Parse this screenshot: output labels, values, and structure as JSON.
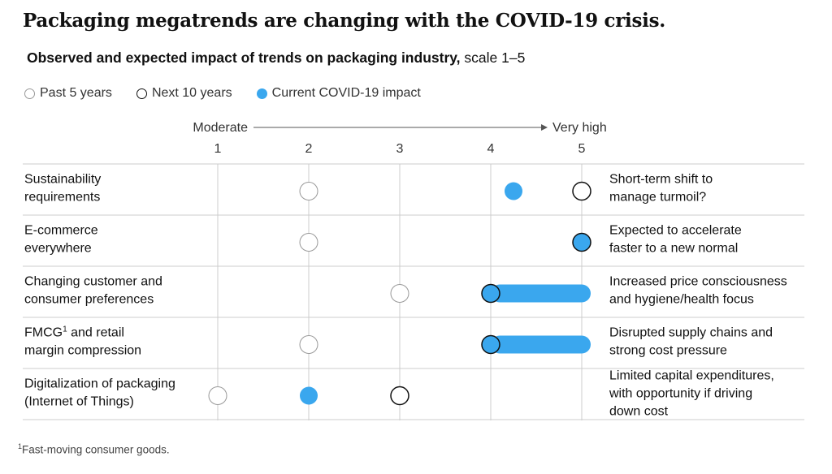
{
  "title": "Packaging megatrends are changing with the COVID-19 crisis.",
  "subtitle_bold": "Observed and expected impact of trends on packaging industry,",
  "subtitle_rest": "scale 1–5",
  "legend": {
    "past": "Past 5 years",
    "next": "Next 10 years",
    "current": "Current COVID-19 impact"
  },
  "scale_left_label": "Moderate",
  "scale_right_label": "Very high",
  "footnote_mark": "1",
  "footnote": "Fast-moving consumer goods.",
  "colors": {
    "current": "#3aa7ee",
    "outline": "#111111",
    "past_outline": "#999999",
    "grid": "#cccccc"
  },
  "chart_data": {
    "type": "scatter",
    "title": "Observed and expected impact of trends on packaging industry, scale 1–5",
    "xlim": [
      1,
      5
    ],
    "ticks": [
      "1",
      "2",
      "3",
      "4",
      "5"
    ],
    "rows": [
      {
        "label_lines": [
          "Sustainability",
          "requirements"
        ],
        "past": 2,
        "next": 5,
        "current": 4.25,
        "note_lines": [
          "Short-term shift to",
          "manage turmoil?"
        ]
      },
      {
        "label_lines": [
          "E-commerce",
          "everywhere"
        ],
        "past": 2,
        "next": 5,
        "current": 5,
        "note_lines": [
          "Expected to accelerate",
          "faster to a new normal"
        ]
      },
      {
        "label_lines": [
          "Changing customer and",
          "consumer preferences"
        ],
        "past": 3,
        "next": 4,
        "current": [
          4,
          5
        ],
        "note_lines": [
          "Increased price consciousness",
          "and hygiene/health focus"
        ]
      },
      {
        "label_lines": [
          "FMCG",
          "margin compression"
        ],
        "label_sup": "1",
        "label_after_sup": " and retail",
        "past": 2,
        "next": 4,
        "current": [
          4,
          5
        ],
        "note_lines": [
          "Disrupted supply chains and",
          "strong cost pressure"
        ]
      },
      {
        "label_lines": [
          "Digitalization of packaging",
          "(Internet of Things)"
        ],
        "past": 1,
        "next": 3,
        "current": 2,
        "note_lines": [
          "Limited capital expenditures,",
          "with opportunity if driving",
          "down cost"
        ]
      }
    ]
  }
}
